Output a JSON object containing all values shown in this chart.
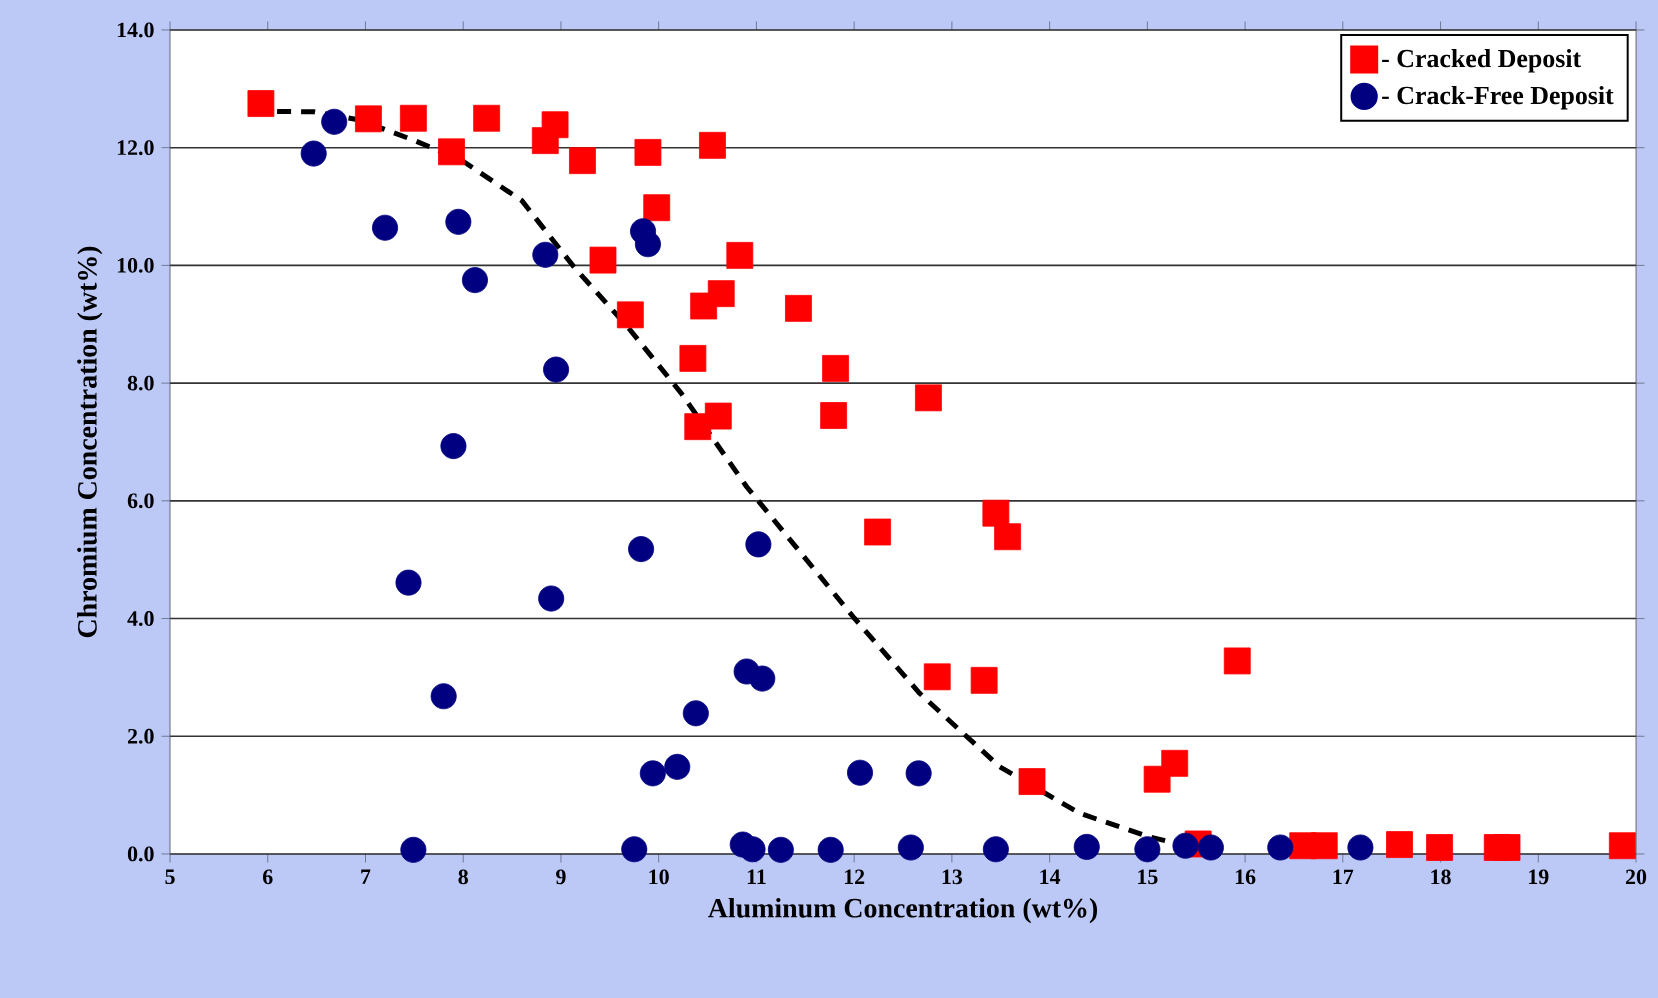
{
  "chart_data": {
    "type": "scatter",
    "xlabel": "Aluminum Concentration (wt%)",
    "ylabel": "Chromium Concentration (wt%)",
    "xlim": [
      5,
      20
    ],
    "xticks": [
      5,
      6,
      7,
      8,
      9,
      10,
      11,
      12,
      13,
      14,
      15,
      16,
      17,
      18,
      19,
      20
    ],
    "ylim": [
      0,
      14
    ],
    "yticks": [
      {
        "value": 0,
        "label": "0.0"
      },
      {
        "value": 2,
        "label": "2.0"
      },
      {
        "value": 4,
        "label": "4.0"
      },
      {
        "value": 6,
        "label": "6.0"
      },
      {
        "value": 8,
        "label": "8.0"
      },
      {
        "value": 10,
        "label": "10.0"
      },
      {
        "value": 12,
        "label": "12.0"
      },
      {
        "value": 14,
        "label": "14.0"
      }
    ],
    "grid": "y",
    "legend": "top right",
    "series": [
      {
        "name": "- Cracked Deposit",
        "color": "#ff0000",
        "marker": "square",
        "x": [
          5.93,
          7.03,
          7.49,
          8.24,
          7.88,
          8.84,
          8.94,
          9.22,
          9.89,
          10.55,
          9.98,
          9.43,
          10.83,
          9.71,
          10.46,
          10.64,
          10.35,
          10.61,
          10.4,
          11.43,
          11.81,
          11.79,
          12.76,
          12.24,
          13.45,
          13.57,
          12.85,
          13.33,
          13.82,
          15.1,
          15.28,
          15.92,
          15.52,
          16.59,
          16.81,
          17.58,
          17.99,
          18.58,
          18.68,
          19.86
        ],
        "values": [
          12.75,
          12.49,
          12.5,
          12.5,
          11.93,
          12.12,
          12.39,
          11.78,
          11.92,
          12.04,
          10.98,
          10.09,
          10.17,
          9.16,
          9.31,
          9.52,
          8.42,
          7.44,
          7.26,
          9.27,
          8.25,
          7.45,
          7.75,
          5.47,
          5.79,
          5.39,
          3.01,
          2.95,
          1.23,
          1.27,
          1.54,
          3.28,
          0.17,
          0.14,
          0.14,
          0.16,
          0.11,
          0.11,
          0.11,
          0.14
        ]
      },
      {
        "name": "- Crack-Free Deposit",
        "color": "#000080",
        "marker": "circle",
        "x": [
          6.68,
          6.47,
          7.2,
          7.95,
          8.12,
          8.84,
          8.95,
          7.9,
          9.84,
          9.89,
          9.82,
          11.02,
          7.44,
          8.9,
          7.8,
          10.9,
          11.06,
          10.38,
          9.94,
          10.19,
          12.06,
          12.66,
          7.49,
          9.75,
          10.86,
          10.96,
          11.25,
          11.76,
          12.58,
          13.45,
          14.38,
          15.0,
          15.39,
          15.65,
          16.36,
          17.18
        ],
        "values": [
          12.44,
          11.9,
          10.64,
          10.74,
          9.75,
          10.18,
          8.23,
          6.93,
          10.58,
          10.36,
          5.18,
          5.26,
          4.61,
          4.34,
          2.68,
          3.1,
          2.98,
          2.39,
          1.37,
          1.48,
          1.38,
          1.37,
          0.07,
          0.08,
          0.16,
          0.08,
          0.07,
          0.07,
          0.11,
          0.08,
          0.12,
          0.08,
          0.14,
          0.11,
          0.11,
          0.11
        ]
      },
      {
        "type": "line",
        "color": "#000000",
        "line_style": "dashed",
        "marker": "none",
        "x": [
          5.85,
          6.47,
          6.94,
          7.49,
          7.98,
          8.6,
          9.13,
          9.68,
          10.23,
          10.9,
          11.99,
          12.67,
          13.49,
          14.31,
          15.0,
          15.65
        ],
        "values": [
          12.62,
          12.61,
          12.47,
          12.13,
          11.79,
          11.1,
          9.98,
          8.96,
          7.83,
          6.24,
          4.03,
          2.73,
          1.48,
          0.69,
          0.3,
          0.04
        ]
      }
    ]
  }
}
